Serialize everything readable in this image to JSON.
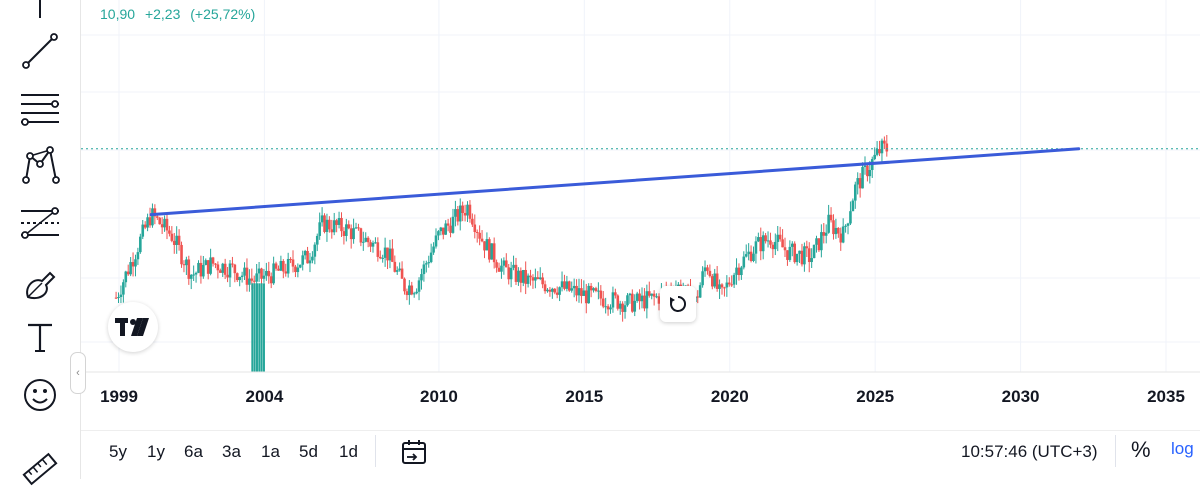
{
  "legend": {
    "value": "10,90",
    "change": "+2,23",
    "change_pct": "(+25,72%)",
    "color": "#26a69a"
  },
  "toolbar": {
    "tools": [
      {
        "name": "cursor-icon"
      },
      {
        "name": "trend-line-icon"
      },
      {
        "name": "horizontal-lines-icon"
      },
      {
        "name": "pattern-icon"
      },
      {
        "name": "forecast-icon"
      },
      {
        "name": "brush-icon"
      },
      {
        "name": "text-icon"
      },
      {
        "name": "emoji-icon"
      },
      {
        "name": "ruler-icon"
      }
    ]
  },
  "bottom_bar": {
    "ranges": [
      "5y",
      "1y",
      "6a",
      "3a",
      "1a",
      "5d",
      "1d"
    ],
    "time": "10:57:46 (UTC+3)",
    "percent_label": "%",
    "log_label": "log"
  },
  "chart_data": {
    "type": "candlestick",
    "x_ticks": [
      "1999",
      "2004",
      "2010",
      "2015",
      "2020",
      "2025",
      "2030",
      "2035"
    ],
    "xlim": [
      1998.5,
      2036.5
    ],
    "ylim": [
      7,
      13.5
    ],
    "last_price": 10.9,
    "colors": {
      "up": "#26a69a",
      "down": "#ef5350",
      "trendline": "#3a5bd9",
      "price_line": "#26a69a"
    },
    "trendline": {
      "start": [
        2000.1,
        9.75
      ],
      "end": [
        2032.0,
        10.9
      ]
    },
    "price_points": [
      [
        1998.9,
        8.3
      ],
      [
        1999.4,
        8.9
      ],
      [
        2000.1,
        9.75
      ],
      [
        2000.8,
        9.4
      ],
      [
        2001.5,
        8.7
      ],
      [
        2002.2,
        8.9
      ],
      [
        2002.9,
        8.8
      ],
      [
        2003.6,
        8.6
      ],
      [
        2004.2,
        8.7
      ],
      [
        2004.9,
        8.85
      ],
      [
        2005.5,
        9.0
      ],
      [
        2006.0,
        9.6
      ],
      [
        2006.8,
        9.5
      ],
      [
        2007.5,
        9.3
      ],
      [
        2008.2,
        9.1
      ],
      [
        2008.8,
        8.5
      ],
      [
        2009.2,
        8.5
      ],
      [
        2010.0,
        9.4
      ],
      [
        2011.0,
        9.9
      ],
      [
        2011.5,
        9.3
      ],
      [
        2012.2,
        8.8
      ],
      [
        2013.0,
        8.6
      ],
      [
        2014.0,
        8.5
      ],
      [
        2015.0,
        8.35
      ],
      [
        2016.0,
        8.25
      ],
      [
        2016.6,
        8.2
      ],
      [
        2017.5,
        8.3
      ],
      [
        2018.2,
        8.5
      ],
      [
        2018.8,
        8.2
      ],
      [
        2019.2,
        8.9
      ],
      [
        2019.7,
        8.3
      ],
      [
        2020.2,
        8.8
      ],
      [
        2020.9,
        9.2
      ],
      [
        2021.4,
        9.35
      ],
      [
        2022.0,
        9.1
      ],
      [
        2022.8,
        9.0
      ],
      [
        2023.4,
        9.6
      ],
      [
        2023.9,
        9.4
      ],
      [
        2024.3,
        10.2
      ],
      [
        2024.8,
        10.6
      ],
      [
        2025.2,
        10.9
      ],
      [
        2025.4,
        10.9
      ]
    ]
  }
}
